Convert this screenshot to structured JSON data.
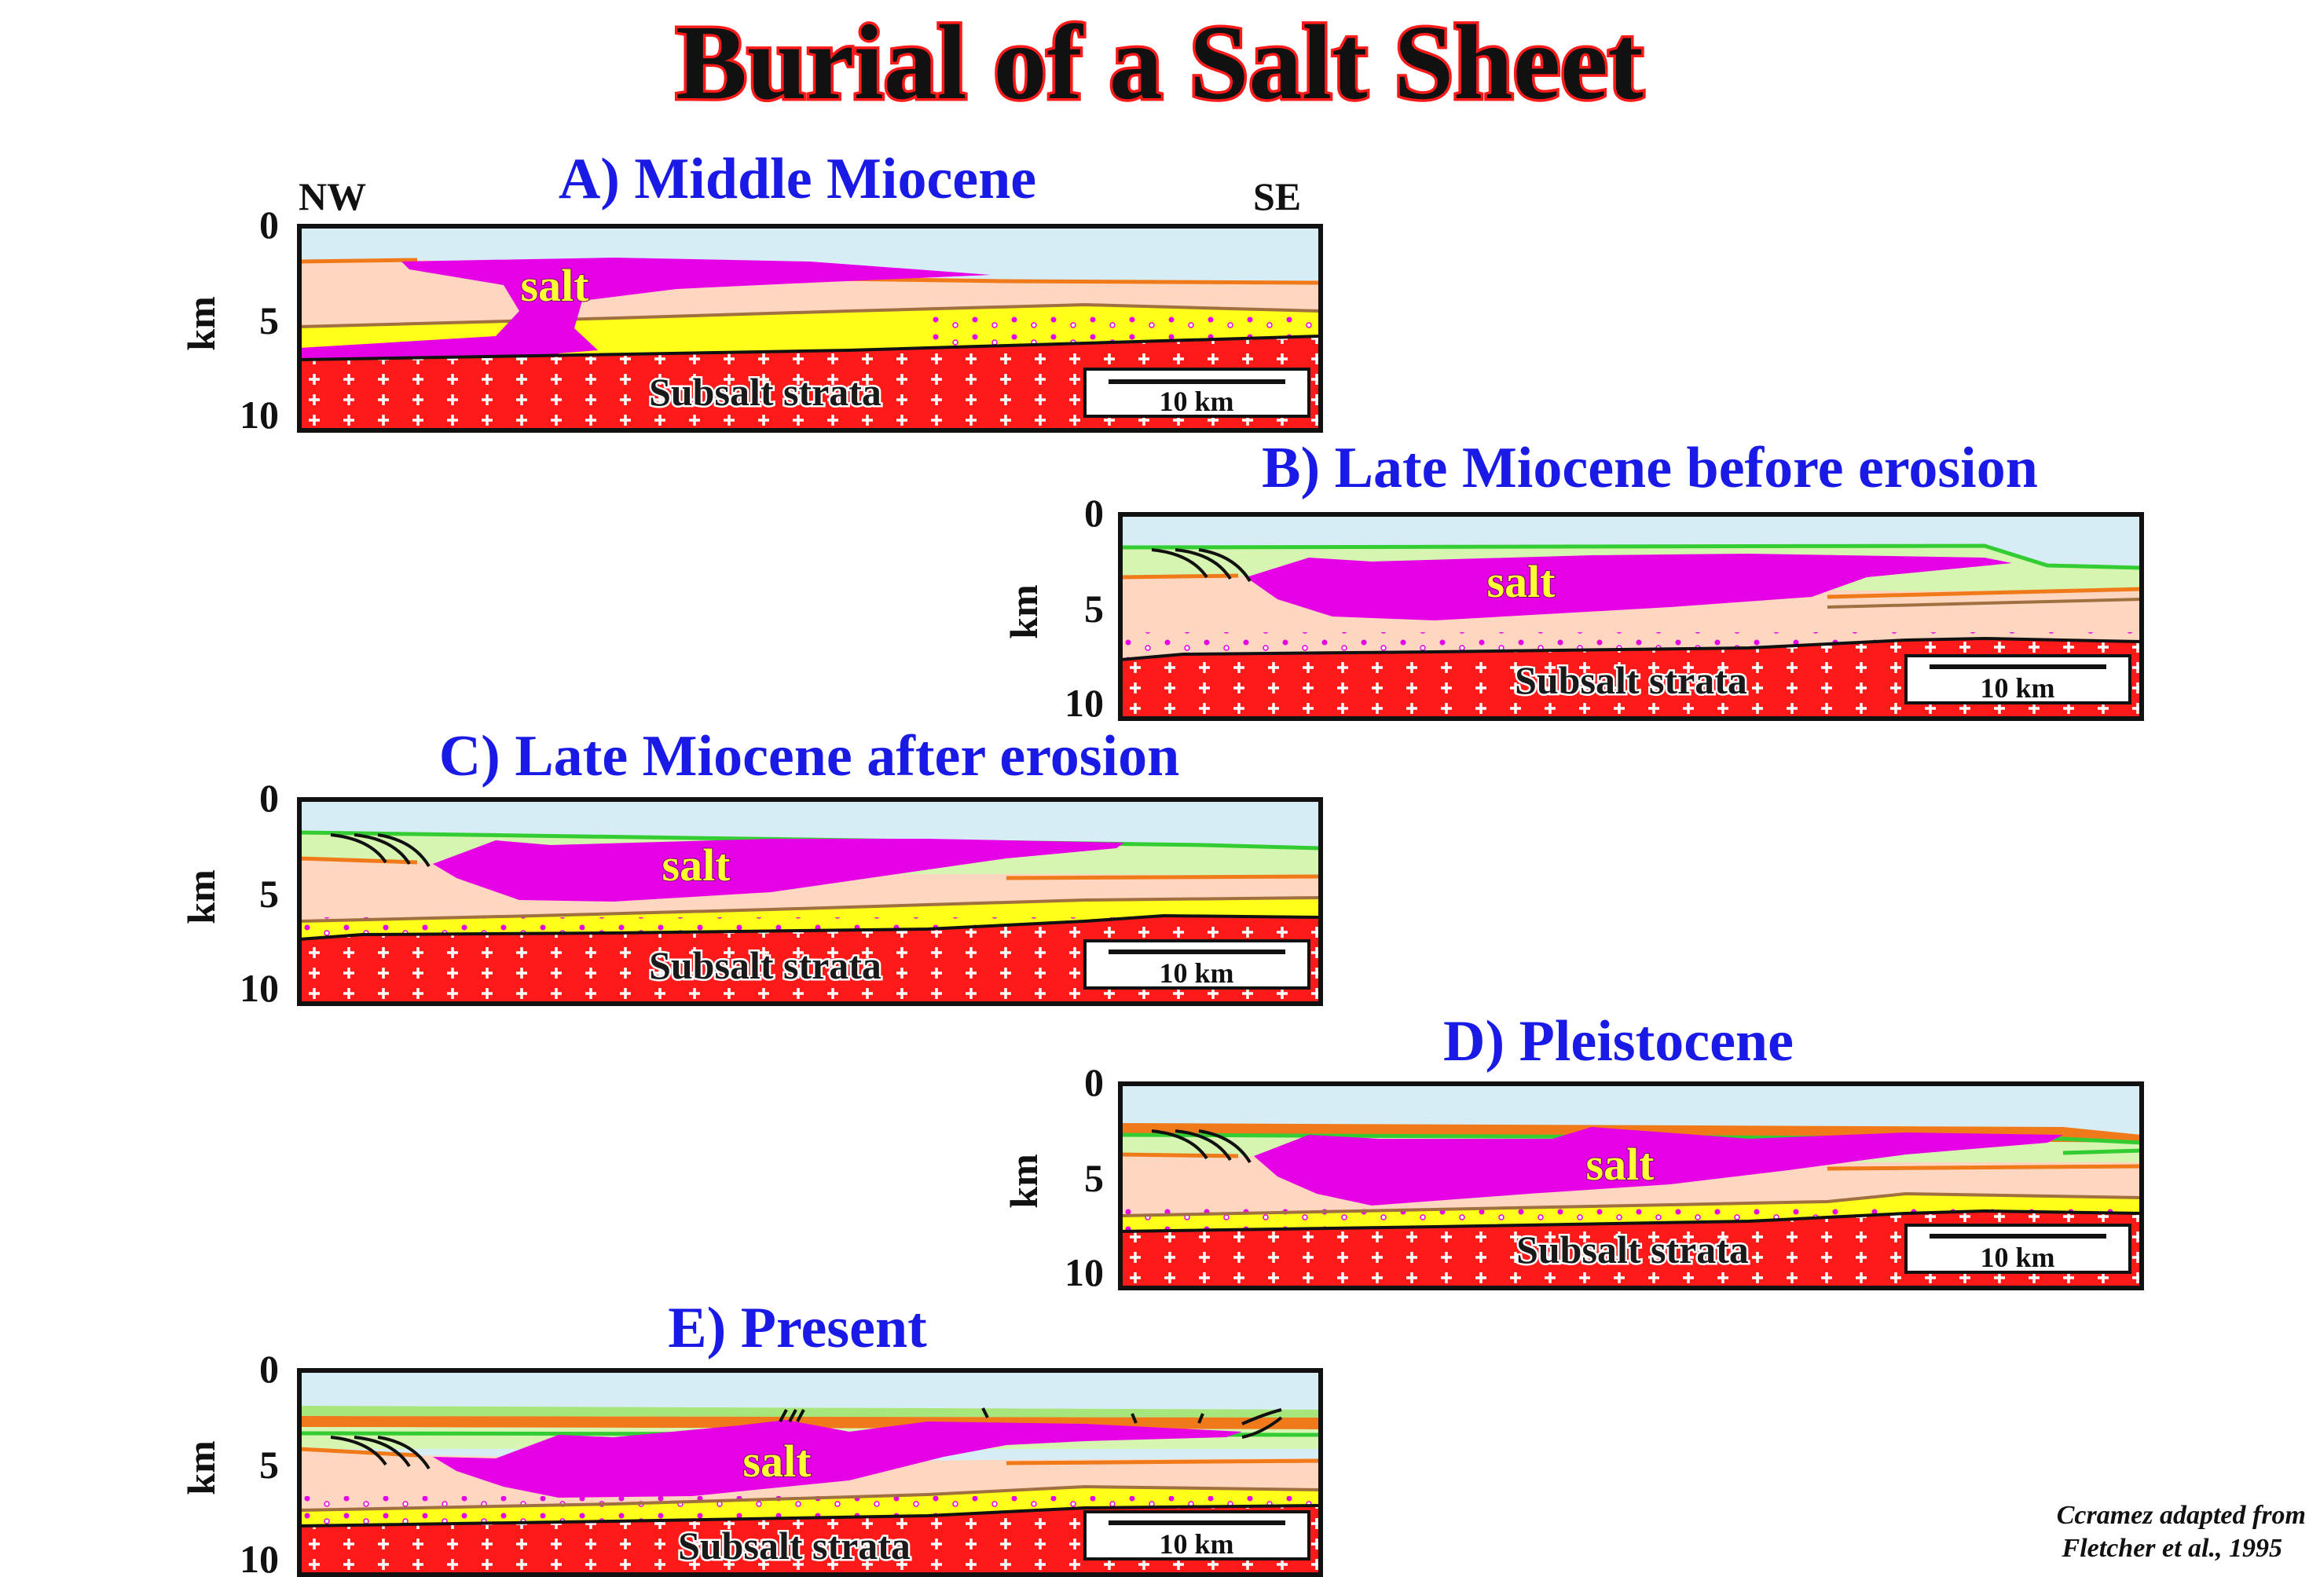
{
  "title": "Burial of a Salt Sheet",
  "directions": {
    "left": "NW",
    "right": "SE"
  },
  "axis": {
    "unit": "km",
    "ticks": [
      "0",
      "5",
      "10"
    ]
  },
  "labels": {
    "salt": "salt",
    "subsalt": "Subsalt strata",
    "scale_bar": "10 km"
  },
  "panels": [
    {
      "id": "A",
      "title": "A) Middle Miocene"
    },
    {
      "id": "B",
      "title": "B) Late Miocene before erosion"
    },
    {
      "id": "C",
      "title": "C) Late Miocene after erosion"
    },
    {
      "id": "D",
      "title": "D) Pleistocene"
    },
    {
      "id": "E",
      "title": "E) Present"
    }
  ],
  "credit": {
    "line1": "Ccramez adapted from",
    "line2": "Fletcher et al., 1995"
  },
  "colors": {
    "sea": "#d6edf6",
    "salt": "#e600e6",
    "subsalt": "#ff1a1a",
    "sand": "#ffff1a",
    "shale": "#ffd6bf",
    "green_layer": "#d6f5b0",
    "green_line": "#33cc33",
    "orange_line": "#f07a1a",
    "brown_line": "#a07040",
    "title_outline": "#ff1a1a",
    "panel_title": "#1a1ae6"
  }
}
